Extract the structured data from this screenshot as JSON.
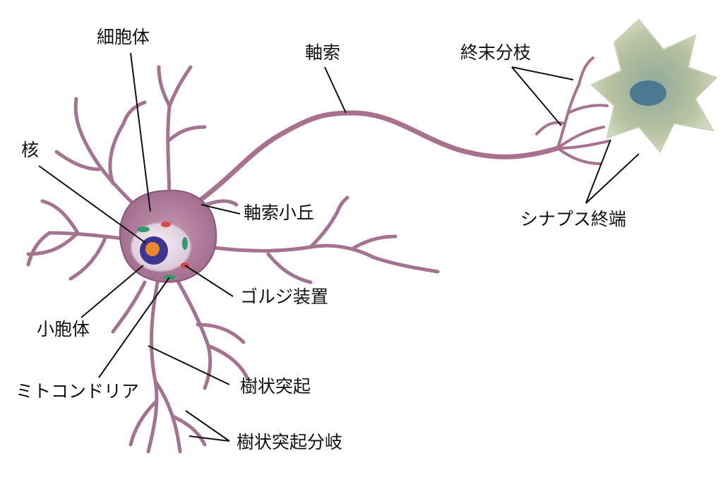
{
  "labels": {
    "soma": "細胞体",
    "axon": "軸索",
    "axon_terminal": "終末分枝",
    "nucleus": "核",
    "axon_hillock": "軸索小丘",
    "synaptic_terminal": "シナプス終端",
    "golgi": "ゴルジ装置",
    "nucleolus": "小胞体",
    "mitochondria": "ミトコンドリア",
    "dendrite": "樹状突起",
    "dendrite_branch": "樹状突起分岐"
  },
  "colors": {
    "neuron_fill": "#b07a9a",
    "neuron_edge": "#8a5878",
    "soma_fill": "#bd8aa8",
    "nucleus_fill": "#ecdcea",
    "nucleus_inner": "#4a3fa8",
    "nucleolus": "#e8892a",
    "organelle_green": "#2f9a6a",
    "organelle_red": "#d84a4a",
    "target_cell": "#b9c3a0",
    "target_nucleus": "#3a6a8c",
    "leader_line": "#111111"
  }
}
